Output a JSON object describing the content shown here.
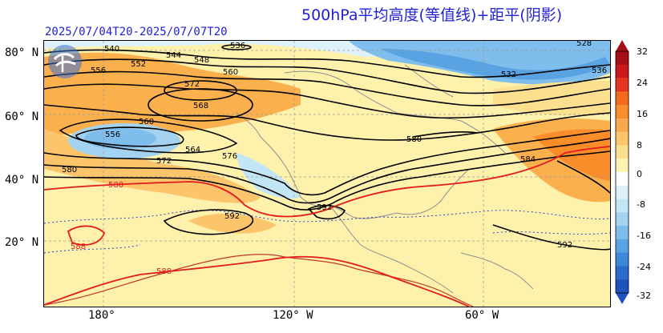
{
  "title": "500hPa平均高度(等值线)+距平(阴影)",
  "time_range": "2025/07/04T20-2025/07/07T20",
  "lat_labels": [
    "80° N",
    "60° N",
    "40° N",
    "20° N"
  ],
  "lon_labels": [
    "180°",
    "120° W",
    "60° W"
  ],
  "contour_labels": [
    "540",
    "552",
    "544",
    "548",
    "536",
    "556",
    "532",
    "536",
    "572",
    "560",
    "568",
    "560",
    "556",
    "564",
    "572",
    "576",
    "580",
    "584",
    "580",
    "588",
    "592",
    "592",
    "588",
    "588",
    "592",
    "528"
  ],
  "colorbar": {
    "ticks": [
      "32",
      "24",
      "16",
      "8",
      "0",
      "-8",
      "-16",
      "-24",
      "-32"
    ],
    "colors": [
      "#a50f15",
      "#cb181d",
      "#e5341f",
      "#f56a1c",
      "#f88d2a",
      "#fba94e",
      "#fcc56c",
      "#fde08f",
      "#fff2b0",
      "#ffffff",
      "#dff2fb",
      "#c3e6f7",
      "#a4d3f2",
      "#7fbdec",
      "#5aa3e3",
      "#3d88d9",
      "#2a6ccd",
      "#1f52bd"
    ]
  },
  "colors": {
    "title": "#1f1fd6",
    "contour": "#000000",
    "contour_588": "#e41a1c",
    "zero_anomaly": "#1f1fd6",
    "coast": "#9a9a9a"
  },
  "icons": [
    "cma-logo-icon"
  ]
}
